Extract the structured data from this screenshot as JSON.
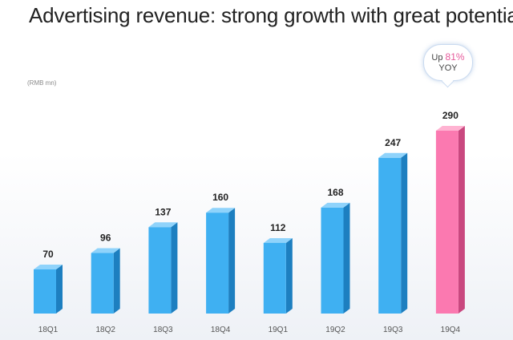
{
  "page": {
    "title": "Advertising revenue:  strong growth with great potential",
    "unit_note": "(RMB mn)"
  },
  "callout": {
    "prefix": "Up",
    "percent": "81%",
    "suffix": "YOY",
    "accent_color": "#e65a9b"
  },
  "chart_data": {
    "type": "bar",
    "title": "Advertising revenue:  strong growth with great potential",
    "ylabel": "(RMB mn)",
    "xlabel": "",
    "categories": [
      "18Q1",
      "18Q2",
      "18Q3",
      "18Q4",
      "19Q1",
      "19Q2",
      "19Q3",
      "19Q4"
    ],
    "values": [
      70,
      96,
      137,
      160,
      112,
      168,
      247,
      290
    ],
    "ylim": [
      0,
      300
    ],
    "grid": false,
    "highlight_index": 7,
    "colors": {
      "bar": "#3fb0f2",
      "bar_side": "#1d7fc0",
      "bar_top": "#8fd3fb",
      "highlight": "#fb79b0",
      "highlight_side": "#c9487f",
      "highlight_top": "#ffb3d2"
    }
  }
}
